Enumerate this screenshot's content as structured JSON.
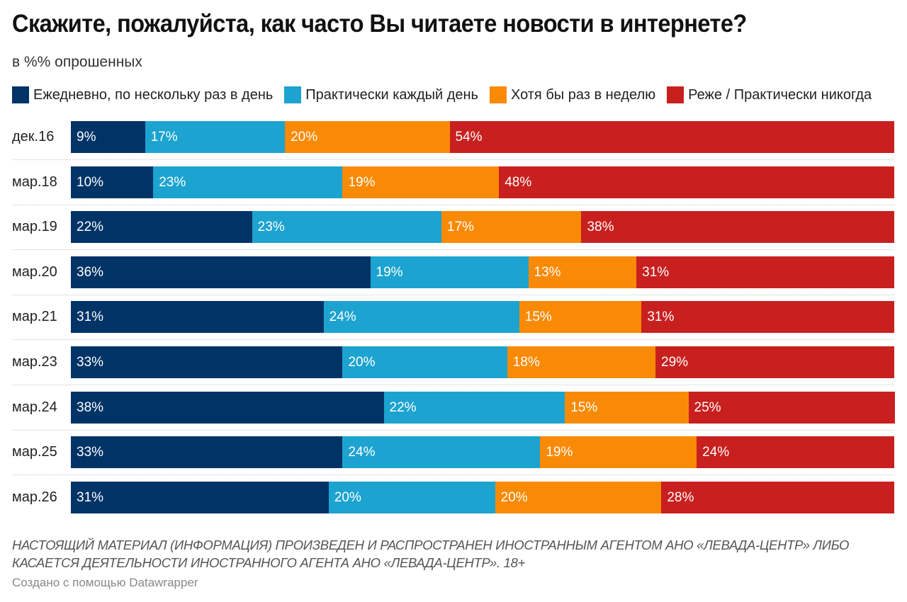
{
  "header": {
    "title": "Скажите, пожалуйста, как часто Вы читаете новости в интернете?",
    "subtitle": "в %% опрошенных"
  },
  "legend": [
    {
      "label": "Ежедневно, по нескольку раз в день",
      "color": "#003366"
    },
    {
      "label": "Практически каждый день",
      "color": "#1ca3d0"
    },
    {
      "label": "Хотя бы раз в неделю",
      "color": "#f98a05"
    },
    {
      "label": "Реже / Практически никогда",
      "color": "#c8201f"
    }
  ],
  "footer": {
    "notes": "НАСТОЯЩИЙ МАТЕРИАЛ (ИНФОРМАЦИЯ) ПРОИЗВЕДЕН И РАСПРОСТРАНЕН ИНОСТРАННЫМ АГЕНТОМ АНО «ЛЕВАДА-ЦЕНТР» ЛИБО КАСАЕТСЯ ДЕЯТЕЛЬНОСТИ ИНОСТРАННОГО АГЕНТА АНО «ЛЕВАДА-ЦЕНТР». 18+",
    "credit": "Создано с помощью Datawrapper"
  },
  "chart_data": {
    "type": "bar",
    "orientation": "horizontal",
    "stacked": true,
    "normalized": true,
    "title": "Скажите, пожалуйста, как часто Вы читаете новости в интернете?",
    "subtitle": "в %% опрошенных",
    "xlabel": "",
    "ylabel": "",
    "value_suffix": "%",
    "legend_position": "top-left",
    "grid": false,
    "categories": [
      "дек.16",
      "мар.18",
      "мар.19",
      "мар.20",
      "мар.21",
      "мар.23",
      "мар.24",
      "мар.25",
      "мар.26"
    ],
    "series": [
      {
        "name": "Ежедневно, по нескольку раз в день",
        "color": "#003366",
        "values": [
          9,
          10,
          22,
          36,
          31,
          33,
          38,
          33,
          31
        ]
      },
      {
        "name": "Практически каждый день",
        "color": "#1ca3d0",
        "values": [
          17,
          23,
          23,
          19,
          24,
          20,
          22,
          24,
          20
        ]
      },
      {
        "name": "Хотя бы раз в неделю",
        "color": "#f98a05",
        "values": [
          20,
          19,
          17,
          13,
          15,
          18,
          15,
          19,
          20
        ]
      },
      {
        "name": "Реже / Практически никогда",
        "color": "#c8201f",
        "values": [
          54,
          48,
          38,
          31,
          31,
          29,
          25,
          24,
          28
        ]
      }
    ]
  }
}
